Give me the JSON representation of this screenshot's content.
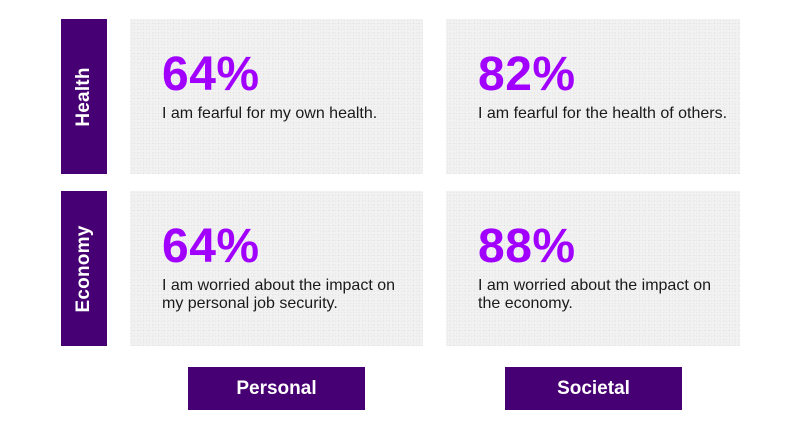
{
  "chart_data": {
    "type": "table",
    "rows": [
      "Health",
      "Economy"
    ],
    "columns": [
      "Personal",
      "Societal"
    ],
    "cells": [
      [
        {
          "value": 64,
          "label": "64%",
          "statement": "I am fearful for my own health."
        },
        {
          "value": 82,
          "label": "82%",
          "statement": "I am fearful for the health of others."
        }
      ],
      [
        {
          "value": 64,
          "label": "64%",
          "statement": "I am worried about the impact on my personal job security."
        },
        {
          "value": 88,
          "label": "88%",
          "statement": "I am worried about the impact on the economy."
        }
      ]
    ]
  },
  "colors": {
    "label_background": "#460073",
    "percent_text": "#a100ff",
    "card_background": "#f2f2f2"
  }
}
